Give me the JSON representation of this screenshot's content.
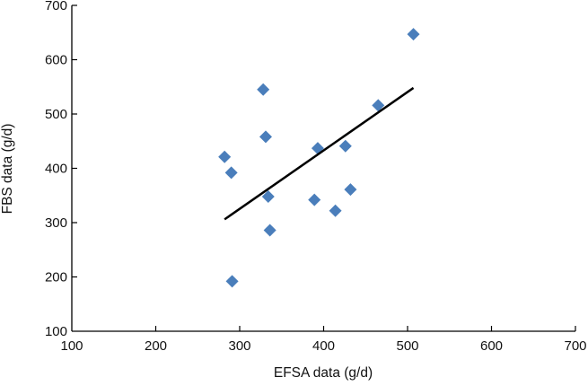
{
  "chart_data": {
    "type": "scatter",
    "title": "",
    "xlabel": "EFSA data (g/d)",
    "ylabel": "FBS data (g/d)",
    "xlim": [
      100,
      700
    ],
    "ylim": [
      100,
      700
    ],
    "xticks": [
      "100",
      "200",
      "300",
      "400",
      "500",
      "600",
      "700"
    ],
    "yticks": [
      "100",
      "200",
      "300",
      "400",
      "500",
      "600",
      "700"
    ],
    "grid": false,
    "marker_color": "#4a7ebb",
    "series": [
      {
        "name": "data",
        "x": [
          282,
          290,
          291,
          328,
          331,
          334,
          336,
          389,
          393,
          414,
          426,
          432,
          465,
          507
        ],
        "y": [
          421,
          392,
          192,
          545,
          458,
          348,
          286,
          342,
          437,
          322,
          441,
          361,
          516,
          647
        ]
      }
    ],
    "trendline": {
      "x": [
        282,
        507
      ],
      "y": [
        306,
        548
      ],
      "color": "#000000"
    }
  }
}
